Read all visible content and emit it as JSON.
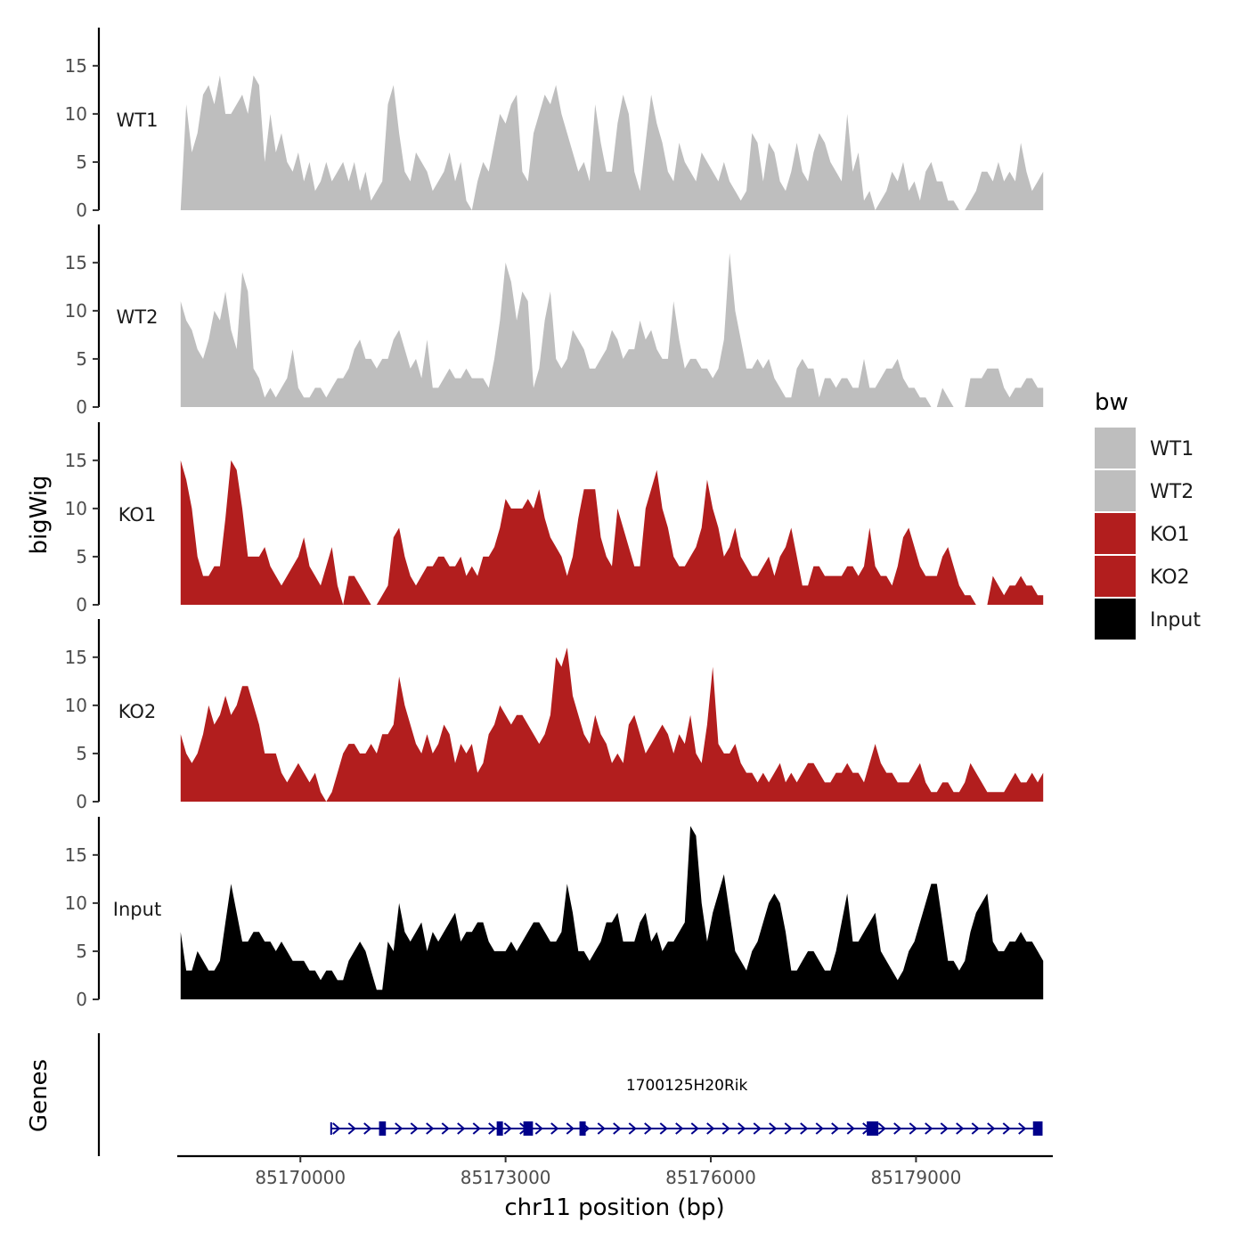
{
  "chart_data": {
    "type": "area",
    "xlabel": "chr11 position (bp)",
    "ylabel": "bigWig",
    "xlim": [
      85168200,
      85181000
    ],
    "ylim": [
      0,
      18.5
    ],
    "x_ticks": [
      85170000,
      85173000,
      85176000,
      85179000
    ],
    "x_tick_labels": [
      "85170000",
      "85173000",
      "85176000",
      "85179000"
    ],
    "y_ticks": [
      0,
      5,
      10,
      15
    ],
    "y_tick_labels": [
      "0",
      "5",
      "10",
      "15"
    ],
    "x_start": 85168250,
    "x_end": 85180860,
    "legend": {
      "title": "bw",
      "position": "right",
      "entries": [
        {
          "label": "WT1",
          "color": "#bebebe"
        },
        {
          "label": "WT2",
          "color": "#bebebe"
        },
        {
          "label": "KO1",
          "color": "#b21e1e"
        },
        {
          "label": "KO2",
          "color": "#b21e1e"
        },
        {
          "label": "Input",
          "color": "#000000"
        }
      ]
    },
    "series": [
      {
        "name": "WT1",
        "color": "#bebebe",
        "values": [
          0,
          11,
          6,
          8,
          12,
          13,
          11,
          14,
          10,
          10,
          11,
          12,
          10,
          14,
          13,
          5,
          10,
          6,
          8,
          5,
          4,
          6,
          3,
          5,
          2,
          3,
          5,
          3,
          4,
          5,
          3,
          5,
          2,
          4,
          1,
          2,
          3,
          11,
          13,
          8,
          4,
          3,
          6,
          5,
          4,
          2,
          3,
          4,
          6,
          3,
          5,
          1,
          0,
          3,
          5,
          4,
          7,
          10,
          9,
          11,
          12,
          4,
          3,
          8,
          10,
          12,
          11,
          13,
          10,
          8,
          6,
          4,
          5,
          3,
          11,
          7,
          4,
          4,
          9,
          12,
          10,
          4,
          2,
          7,
          12,
          9,
          7,
          4,
          3,
          7,
          5,
          4,
          3,
          6,
          5,
          4,
          3,
          5,
          3,
          2,
          1,
          2,
          8,
          7,
          3,
          7,
          6,
          3,
          2,
          4,
          7,
          4,
          3,
          6,
          8,
          7,
          5,
          4,
          3,
          10,
          4,
          6,
          1,
          2,
          0,
          1,
          2,
          4,
          3,
          5,
          2,
          3,
          1,
          4,
          5,
          3,
          3,
          1,
          1,
          0,
          0,
          1,
          2,
          4,
          4,
          3,
          5,
          3,
          4,
          3,
          7,
          4,
          2,
          3,
          4
        ]
      },
      {
        "name": "WT2",
        "color": "#bebebe",
        "values": [
          11,
          9,
          8,
          6,
          5,
          7,
          10,
          9,
          12,
          8,
          6,
          14,
          12,
          4,
          3,
          1,
          2,
          1,
          2,
          3,
          6,
          2,
          1,
          1,
          2,
          2,
          1,
          2,
          3,
          3,
          4,
          6,
          7,
          5,
          5,
          4,
          5,
          5,
          7,
          8,
          6,
          4,
          5,
          3,
          7,
          2,
          2,
          3,
          4,
          3,
          3,
          4,
          3,
          3,
          3,
          2,
          5,
          9,
          15,
          13,
          9,
          12,
          11,
          2,
          4,
          9,
          12,
          5,
          4,
          5,
          8,
          7,
          6,
          4,
          4,
          5,
          6,
          8,
          7,
          5,
          6,
          6,
          9,
          7,
          8,
          6,
          5,
          5,
          11,
          7,
          4,
          5,
          5,
          4,
          4,
          3,
          4,
          7,
          16,
          10,
          7,
          4,
          4,
          5,
          4,
          5,
          3,
          2,
          1,
          1,
          4,
          5,
          4,
          4,
          1,
          3,
          3,
          2,
          3,
          3,
          2,
          2,
          5,
          2,
          2,
          3,
          4,
          4,
          5,
          3,
          2,
          2,
          1,
          1,
          0,
          0,
          2,
          1,
          0,
          0,
          0,
          3,
          3,
          3,
          4,
          4,
          4,
          2,
          1,
          2,
          2,
          3,
          3,
          2,
          2
        ]
      },
      {
        "name": "KO1",
        "color": "#b21e1e",
        "values": [
          15,
          13,
          10,
          5,
          3,
          3,
          4,
          4,
          9,
          15,
          14,
          10,
          5,
          5,
          5,
          6,
          4,
          3,
          2,
          3,
          4,
          5,
          7,
          4,
          3,
          2,
          4,
          6,
          2,
          0,
          3,
          3,
          2,
          1,
          0,
          0,
          1,
          2,
          7,
          8,
          5,
          3,
          2,
          3,
          4,
          4,
          5,
          5,
          4,
          4,
          5,
          3,
          4,
          3,
          5,
          5,
          6,
          8,
          11,
          10,
          10,
          10,
          11,
          10,
          12,
          9,
          7,
          6,
          5,
          3,
          5,
          9,
          12,
          12,
          12,
          7,
          5,
          4,
          10,
          8,
          6,
          4,
          4,
          10,
          12,
          14,
          10,
          8,
          5,
          4,
          4,
          5,
          6,
          8,
          13,
          10,
          8,
          5,
          6,
          8,
          5,
          4,
          3,
          3,
          4,
          5,
          3,
          5,
          6,
          8,
          5,
          2,
          2,
          4,
          4,
          3,
          3,
          3,
          3,
          4,
          4,
          3,
          4,
          8,
          4,
          3,
          3,
          2,
          4,
          7,
          8,
          6,
          4,
          3,
          3,
          3,
          5,
          6,
          4,
          2,
          1,
          1,
          0,
          0,
          0,
          3,
          2,
          1,
          2,
          2,
          3,
          2,
          2,
          1,
          1
        ]
      },
      {
        "name": "KO2",
        "color": "#b21e1e",
        "values": [
          7,
          5,
          4,
          5,
          7,
          10,
          8,
          9,
          11,
          9,
          10,
          12,
          12,
          10,
          8,
          5,
          5,
          5,
          3,
          2,
          3,
          4,
          3,
          2,
          3,
          1,
          0,
          1,
          3,
          5,
          6,
          6,
          5,
          5,
          6,
          5,
          7,
          7,
          8,
          13,
          10,
          8,
          6,
          5,
          7,
          5,
          6,
          8,
          7,
          4,
          6,
          5,
          6,
          3,
          4,
          7,
          8,
          10,
          9,
          8,
          9,
          9,
          8,
          7,
          6,
          7,
          9,
          15,
          14,
          16,
          11,
          9,
          7,
          6,
          9,
          7,
          6,
          4,
          5,
          4,
          8,
          9,
          7,
          5,
          6,
          7,
          8,
          7,
          5,
          7,
          6,
          9,
          5,
          4,
          8,
          14,
          6,
          5,
          5,
          6,
          4,
          3,
          3,
          2,
          3,
          2,
          3,
          4,
          2,
          3,
          2,
          3,
          4,
          4,
          3,
          2,
          2,
          3,
          3,
          4,
          3,
          3,
          2,
          4,
          6,
          4,
          3,
          3,
          2,
          2,
          2,
          3,
          4,
          2,
          1,
          1,
          2,
          2,
          1,
          1,
          2,
          4,
          3,
          2,
          1,
          1,
          1,
          1,
          2,
          3,
          2,
          2,
          3,
          2,
          3
        ]
      },
      {
        "name": "Input",
        "color": "#000000",
        "values": [
          7,
          3,
          3,
          5,
          4,
          3,
          3,
          4,
          8,
          12,
          9,
          6,
          6,
          7,
          7,
          6,
          6,
          5,
          6,
          5,
          4,
          4,
          4,
          3,
          3,
          2,
          3,
          3,
          2,
          2,
          4,
          5,
          6,
          5,
          3,
          1,
          1,
          6,
          5,
          10,
          7,
          6,
          7,
          8,
          5,
          7,
          6,
          7,
          8,
          9,
          6,
          7,
          7,
          8,
          8,
          6,
          5,
          5,
          5,
          6,
          5,
          6,
          7,
          8,
          8,
          7,
          6,
          6,
          7,
          12,
          9,
          5,
          5,
          4,
          5,
          6,
          8,
          8,
          9,
          6,
          6,
          6,
          8,
          9,
          6,
          7,
          5,
          6,
          6,
          7,
          8,
          18,
          17,
          10,
          6,
          9,
          11,
          13,
          9,
          5,
          4,
          3,
          5,
          6,
          8,
          10,
          11,
          10,
          7,
          3,
          3,
          4,
          5,
          5,
          4,
          3,
          3,
          5,
          8,
          11,
          6,
          6,
          7,
          8,
          9,
          5,
          4,
          3,
          2,
          3,
          5,
          6,
          8,
          10,
          12,
          12,
          8,
          4,
          4,
          3,
          4,
          7,
          9,
          10,
          11,
          6,
          5,
          5,
          6,
          6,
          7,
          6,
          6,
          5,
          4
        ]
      }
    ],
    "gene": {
      "name": "1700125H20Rik",
      "strand": "+",
      "color": "#00008b",
      "start": 85170450,
      "end": 85180850,
      "exons": [
        [
          85171150,
          85171250
        ],
        [
          85172870,
          85172950
        ],
        [
          85173260,
          85173400
        ],
        [
          85174080,
          85174150
        ],
        [
          85178280,
          85178450
        ],
        [
          85180710,
          85180850
        ]
      ],
      "track_label": "Genes"
    }
  }
}
